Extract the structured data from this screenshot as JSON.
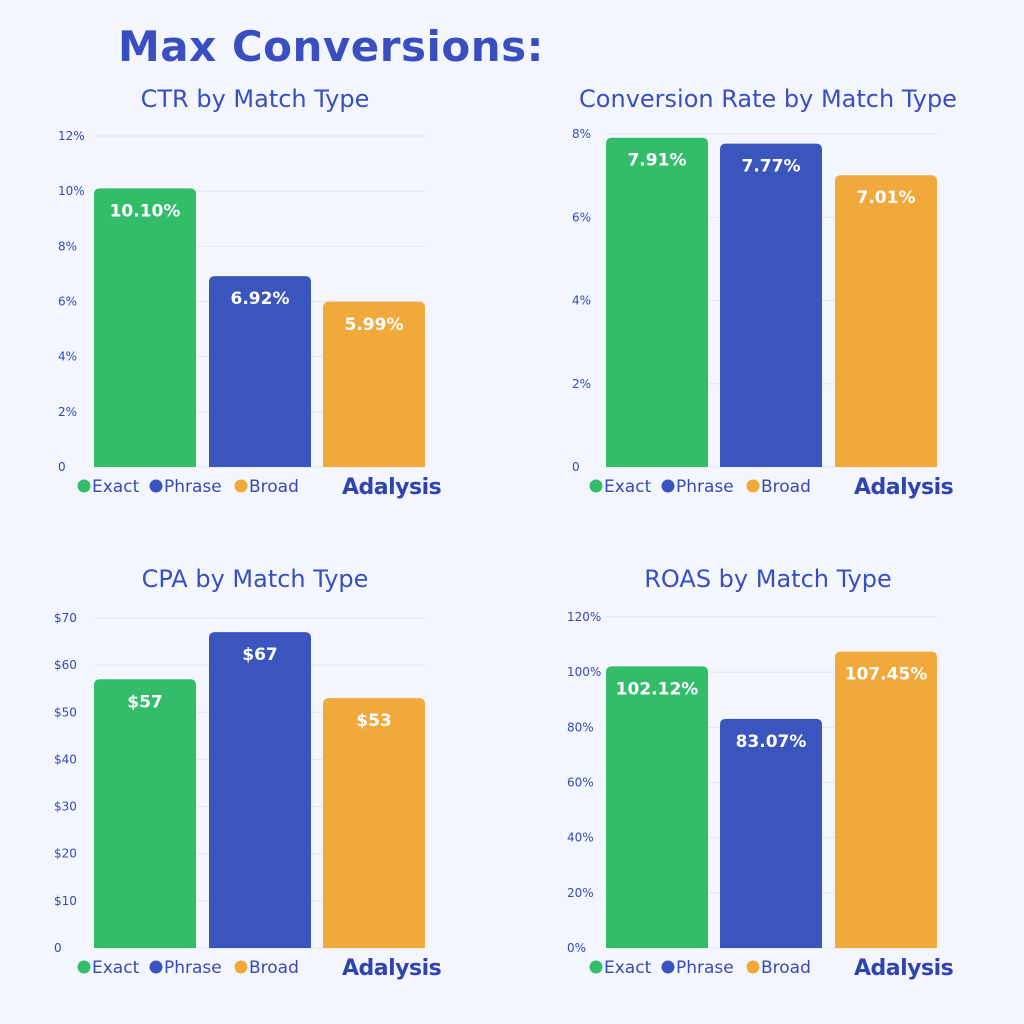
{
  "title": "Max Conversions:",
  "colors": {
    "Exact": "#33bd6b",
    "Phrase": "#3a55bd",
    "Broad": "#f0a93a",
    "text": "#3549b8",
    "grid": "#dfe5f0"
  },
  "logo": "Adalysis",
  "chart_data": [
    {
      "type": "bar",
      "title": "CTR by Match Type",
      "categories": [
        "Exact",
        "Phrase",
        "Broad"
      ],
      "values": [
        10.1,
        6.92,
        5.99
      ],
      "value_labels": [
        "10.10%",
        "6.92%",
        "5.99%"
      ],
      "ylim": [
        0,
        12
      ],
      "yticks": [
        0,
        2,
        4,
        6,
        8,
        10,
        12
      ],
      "ytick_labels": [
        "0",
        "2%",
        "4%",
        "6%",
        "8%",
        "10%",
        "12%"
      ],
      "legend": [
        "Exact",
        "Phrase",
        "Broad"
      ],
      "legend_placement": "bottom-left",
      "grid": true
    },
    {
      "type": "bar",
      "title": "Conversion Rate by Match Type",
      "categories": [
        "Exact",
        "Phrase",
        "Broad"
      ],
      "values": [
        7.91,
        7.77,
        7.01
      ],
      "value_labels": [
        "7.91%",
        "7.77%",
        "7.01%"
      ],
      "ylim": [
        0,
        8
      ],
      "yticks": [
        0,
        2,
        4,
        6,
        8
      ],
      "ytick_labels": [
        "0",
        "2%",
        "4%",
        "6%",
        "8%"
      ],
      "legend": [
        "Exact",
        "Phrase",
        "Broad"
      ],
      "legend_placement": "bottom-left",
      "grid": true
    },
    {
      "type": "bar",
      "title": "CPA by Match Type",
      "categories": [
        "Exact",
        "Phrase",
        "Broad"
      ],
      "values": [
        57,
        67,
        53
      ],
      "value_labels": [
        "$57",
        "$67",
        "$53"
      ],
      "ylim": [
        0,
        70
      ],
      "yticks": [
        0,
        10,
        20,
        30,
        40,
        50,
        60,
        70
      ],
      "ytick_labels": [
        "0",
        "$10",
        "$20",
        "$30",
        "$40",
        "$50",
        "$60",
        "$70"
      ],
      "legend": [
        "Exact",
        "Phrase",
        "Broad"
      ],
      "legend_placement": "bottom-left",
      "grid": true
    },
    {
      "type": "bar",
      "title": "ROAS by Match Type",
      "categories": [
        "Exact",
        "Phrase",
        "Broad"
      ],
      "values": [
        102.12,
        83.07,
        107.45
      ],
      "value_labels": [
        "102.12%",
        "83.07%",
        "107.45%"
      ],
      "ylim": [
        0,
        120
      ],
      "yticks": [
        0,
        20,
        40,
        60,
        80,
        100,
        120
      ],
      "ytick_labels": [
        "0%",
        "20%",
        "40%",
        "60%",
        "80%",
        "100%",
        "120%"
      ],
      "legend": [
        "Exact",
        "Phrase",
        "Broad"
      ],
      "legend_placement": "bottom-left",
      "grid": true
    }
  ]
}
